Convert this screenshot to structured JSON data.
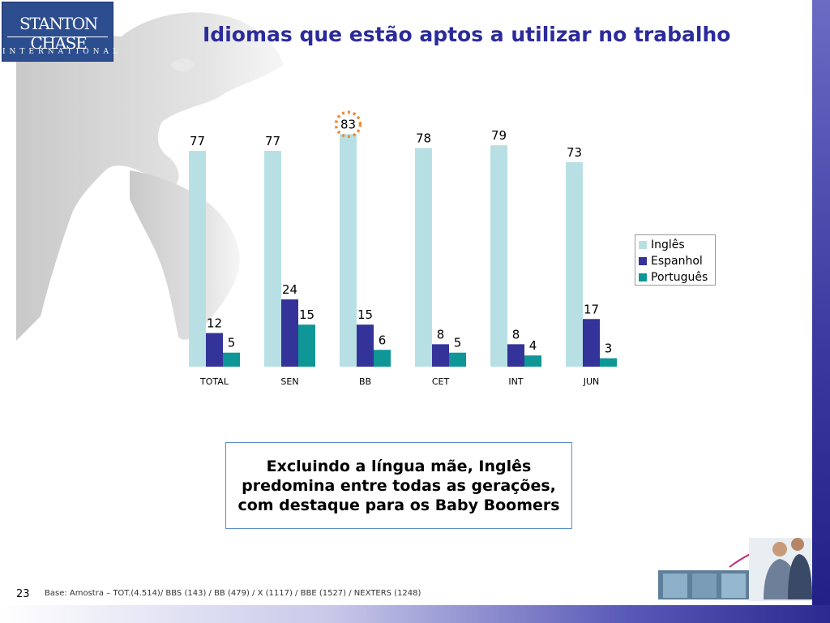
{
  "title": "Idiomas que estão aptos a utilizar no trabalho",
  "logo": {
    "line1": "STANTON CHASE",
    "line2": "INTERNATIONAL"
  },
  "chart_data": {
    "type": "bar",
    "categories": [
      "TOTAL",
      "SEN",
      "BB",
      "CET",
      "INT",
      "JUN"
    ],
    "series": [
      {
        "name": "Inglês",
        "values": [
          77,
          77,
          83,
          78,
          79,
          73
        ],
        "color": "#b8e0e4"
      },
      {
        "name": "Espanhol",
        "values": [
          12,
          24,
          15,
          8,
          8,
          17
        ],
        "color": "#333399"
      },
      {
        "name": "Português",
        "values": [
          5,
          15,
          6,
          5,
          4,
          3
        ],
        "color": "#0f9696"
      }
    ],
    "highlight": {
      "series": "Inglês",
      "category": "BB",
      "color": "#f08a30"
    },
    "legend_position": "right",
    "ylim": [
      0,
      90
    ],
    "grid": false
  },
  "callout": "Excluindo a língua mãe, Inglês predomina entre todas as gerações, com destaque para os Baby Boomers",
  "footer": {
    "page_number": "23",
    "base": "Base: Amostra – TOT.(4.514)/ BBS (143) / BB (479) / X (1117) / BBE (1527) / NEXTERS (1248)"
  }
}
